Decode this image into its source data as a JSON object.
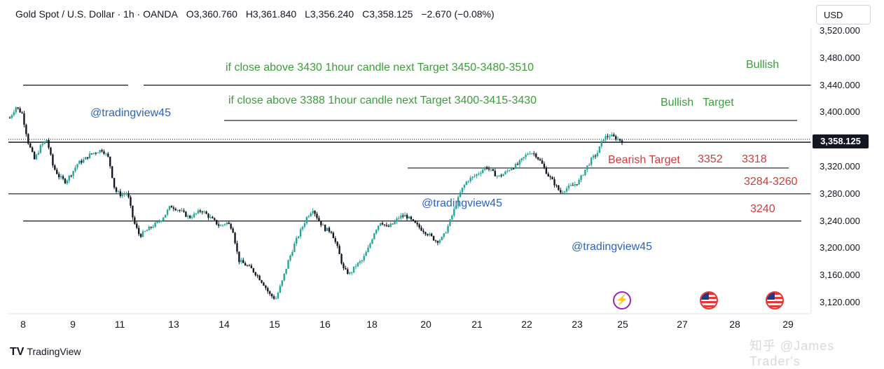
{
  "header": {
    "symbol": "Gold Spot / U.S. Dollar · 1h · OANDA",
    "open": "O3,360.760",
    "high": "H3,361.840",
    "low": "L3,356.240",
    "close": "C3,358.125",
    "change": "−2.670 (−0.08%)"
  },
  "currency_button": "USD",
  "price_tag": "3,358.125",
  "footer": {
    "logo_mark": "TV",
    "logo_text": "TradingView",
    "watermark": "知乎 @James Trader's"
  },
  "annotations": {
    "line1": "if close above 3430 1hour candle next  Target  3450-3480-3510",
    "line2": "if close above 3388 1hour candle next  Target  3400-3415-3430",
    "bullish1": "Bullish",
    "bullish2": "Bullish   Target",
    "handle1": "@tradingview45",
    "handle2": "@tradingview45",
    "handle3": "@tradingview45",
    "bearish": "Bearish Target",
    "t3352": "3352",
    "t3318": "3318",
    "t3284": "3284-3260",
    "t3240": "3240"
  },
  "colors": {
    "up": "#26a69a",
    "down": "#131722",
    "bullish_text": "#3a9f3a",
    "bearish_text": "#d63a3a",
    "handle_text": "#2c64b9"
  },
  "chart_data": {
    "type": "candlestick",
    "symbol": "Gold Spot / U.S. Dollar",
    "timeframe": "1h",
    "ylim": [
      3100,
      3530
    ],
    "y_ticks": [
      "3,520.000",
      "3,480.000",
      "3,440.000",
      "3,400.000",
      "3,320.000",
      "3,280.000",
      "3,240.000",
      "3,200.000",
      "3,160.000",
      "3,120.000"
    ],
    "x_ticks": [
      "8",
      "9",
      "11",
      "13",
      "14",
      "15",
      "16",
      "18",
      "20",
      "21",
      "22",
      "23",
      "25",
      "27",
      "28",
      "29"
    ],
    "last_price": 3358.125,
    "horizontal_levels": [
      3440,
      3388,
      3356,
      3318,
      3280,
      3240
    ],
    "price_path": [
      3392,
      3408,
      3398,
      3355,
      3330,
      3350,
      3360,
      3320,
      3305,
      3298,
      3310,
      3325,
      3330,
      3338,
      3342,
      3345,
      3332,
      3285,
      3278,
      3282,
      3240,
      3218,
      3225,
      3232,
      3238,
      3248,
      3262,
      3258,
      3252,
      3245,
      3250,
      3256,
      3248,
      3240,
      3232,
      3238,
      3230,
      3182,
      3176,
      3170,
      3160,
      3148,
      3132,
      3125,
      3150,
      3180,
      3205,
      3225,
      3245,
      3258,
      3240,
      3228,
      3225,
      3200,
      3168,
      3162,
      3175,
      3182,
      3200,
      3225,
      3240,
      3230,
      3236,
      3246,
      3248,
      3240,
      3232,
      3225,
      3218,
      3210,
      3215,
      3235,
      3260,
      3285,
      3300,
      3305,
      3312,
      3320,
      3312,
      3305,
      3310,
      3318,
      3322,
      3332,
      3342,
      3338,
      3325,
      3308,
      3296,
      3282,
      3288,
      3292,
      3298,
      3315,
      3330,
      3340,
      3362,
      3366,
      3362,
      3358
    ]
  }
}
